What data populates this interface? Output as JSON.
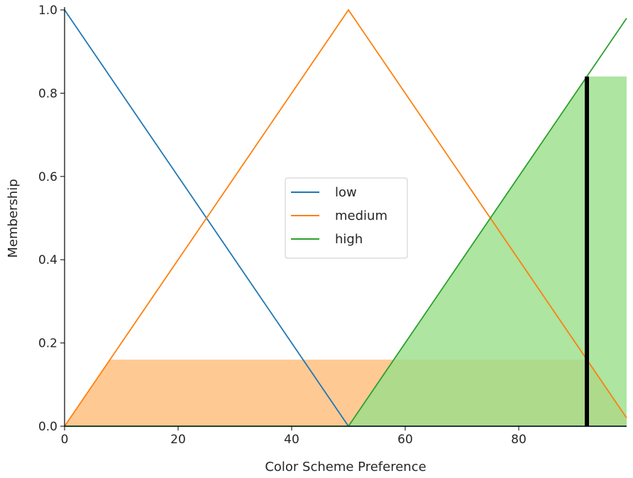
{
  "chart_data": {
    "type": "line",
    "title": "",
    "xlabel": "Color Scheme Preference",
    "ylabel": "Membership",
    "xlim": [
      0,
      99
    ],
    "ylim": [
      0,
      1
    ],
    "x_ticks": [
      "0",
      "20",
      "40",
      "60",
      "80"
    ],
    "y_ticks": [
      "0.0",
      "0.2",
      "0.4",
      "0.6",
      "0.8",
      "1.0"
    ],
    "grid": false,
    "legend_position": "center",
    "series": [
      {
        "name": "low",
        "color": "#1f77b4",
        "x": [
          0,
          50,
          99
        ],
        "y": [
          1,
          0,
          0
        ]
      },
      {
        "name": "medium",
        "color": "#ff7f0e",
        "x": [
          0,
          50,
          99
        ],
        "y": [
          0,
          1,
          0.02
        ]
      },
      {
        "name": "high",
        "color": "#2ca02c",
        "x": [
          0,
          50,
          99
        ],
        "y": [
          0,
          0,
          0.98
        ]
      }
    ],
    "activations": [
      {
        "series": "medium",
        "level": 0.16,
        "color": "#ffbb78"
      },
      {
        "series": "high",
        "level": 0.84,
        "color": "#98df8a"
      }
    ],
    "result_line": {
      "x": 92,
      "y": 0.84,
      "color": "#000000"
    }
  }
}
